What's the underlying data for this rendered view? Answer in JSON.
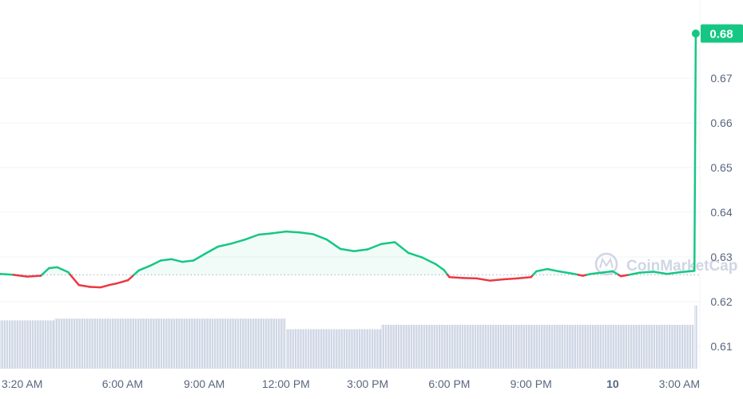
{
  "colors": {
    "up": "#16c784",
    "down": "#ea3943",
    "grid": "#f2f3f5",
    "axis_text": "#58667e",
    "volume": "#cfd6e4",
    "baseline": "#a6b0c3",
    "price_badge_bg": "#16c784",
    "price_badge_text": "#ffffff",
    "watermark": "#cfd6e4"
  },
  "watermark": {
    "text": "CoinMarketCap",
    "icon": "coinmarketcap-logo-icon"
  },
  "price_badge": {
    "label": "0.68"
  },
  "chart_data": {
    "type": "line",
    "title": "",
    "xlabel": "",
    "ylabel": "",
    "ylim": [
      0.605,
      0.6875
    ],
    "xlim": [
      1.5,
      27.2
    ],
    "x_unit": "hours elapsed from 12:00 AM on the day before the day marked 10",
    "grid": true,
    "y_ticks": [
      0.61,
      0.62,
      0.63,
      0.64,
      0.65,
      0.66,
      0.67
    ],
    "y_tick_labels": [
      "0.61",
      "0.62",
      "0.63",
      "0.64",
      "0.65",
      "0.66",
      "0.67"
    ],
    "x_ticks": [
      3.333,
      6,
      9,
      12,
      15,
      18,
      21,
      24,
      27
    ],
    "x_tick_labels": [
      "3:20 AM",
      "6:00 AM",
      "9:00 AM",
      "12:00 PM",
      "3:00 PM",
      "6:00 PM",
      "9:00 PM",
      "10",
      "3:00 AM"
    ],
    "x_tick_bold": [
      false,
      false,
      false,
      false,
      false,
      false,
      false,
      true,
      false
    ],
    "baseline_price": 0.626,
    "last_price": 0.68,
    "series": [
      {
        "x": [
          1.5,
          2.0,
          2.5,
          3.0,
          3.3,
          3.6,
          4.0,
          4.4,
          4.8,
          5.2,
          5.5,
          5.8,
          6.2,
          6.6,
          7.0,
          7.4,
          7.8,
          8.2,
          8.6,
          9.0,
          9.5,
          10.0,
          10.5,
          11.0,
          11.5,
          12.0,
          12.5,
          13.0,
          13.5,
          14.0,
          14.5,
          15.0,
          15.5,
          16.0,
          16.5,
          17.0,
          17.5,
          17.8,
          18.0,
          18.5,
          19.0,
          19.5,
          20.0,
          20.5,
          21.0,
          21.2,
          21.6,
          22.0,
          22.5,
          22.9,
          23.2,
          23.6,
          24.0,
          24.3,
          24.6,
          25.0,
          25.5,
          26.0,
          26.5,
          27.0,
          27.05
        ],
        "y": [
          0.6262,
          0.626,
          0.6256,
          0.6258,
          0.6275,
          0.6277,
          0.6266,
          0.6237,
          0.6233,
          0.6232,
          0.6237,
          0.6241,
          0.6248,
          0.627,
          0.628,
          0.6292,
          0.6295,
          0.6289,
          0.6292,
          0.6306,
          0.6323,
          0.633,
          0.6339,
          0.635,
          0.6353,
          0.6357,
          0.6355,
          0.6351,
          0.6339,
          0.6318,
          0.6313,
          0.6317,
          0.6329,
          0.6333,
          0.6309,
          0.6299,
          0.6284,
          0.6271,
          0.6255,
          0.6253,
          0.6252,
          0.6247,
          0.625,
          0.6252,
          0.6255,
          0.6268,
          0.6273,
          0.6268,
          0.6263,
          0.6258,
          0.6262,
          0.6265,
          0.6268,
          0.6257,
          0.626,
          0.6265,
          0.6267,
          0.6262,
          0.6266,
          0.6269,
          0.68
        ]
      }
    ],
    "volume": {
      "segments": [
        {
          "from": 1.5,
          "to": 3.5,
          "value": 0.55
        },
        {
          "from": 3.5,
          "to": 12.0,
          "value": 0.57
        },
        {
          "from": 12.0,
          "to": 15.5,
          "value": 0.45
        },
        {
          "from": 15.5,
          "to": 27.0,
          "value": 0.5
        },
        {
          "from": 27.0,
          "to": 27.1,
          "value": 0.72
        }
      ]
    }
  }
}
